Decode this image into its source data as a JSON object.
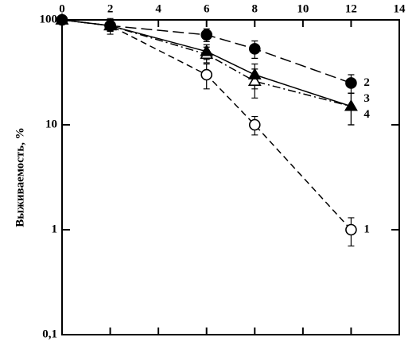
{
  "chart_data": {
    "type": "line",
    "y_label": "Выживаемость, %",
    "x_axis_position": "top",
    "log_y": true,
    "xlim": [
      0,
      14
    ],
    "xticks": [
      0,
      2,
      4,
      6,
      8,
      10,
      12,
      14
    ],
    "ylim": [
      0.1,
      100
    ],
    "yticks": [
      {
        "value": 0.1,
        "label": "0,1"
      },
      1,
      10,
      100
    ],
    "series": [
      {
        "name": "1",
        "color": "#000000",
        "marker": "circle",
        "filled": false,
        "dash": "dashed",
        "x": [
          0,
          2,
          6,
          8,
          12
        ],
        "values": [
          100,
          88,
          30,
          10,
          1
        ],
        "errors": [
          null,
          15,
          8,
          2,
          0.3
        ]
      },
      {
        "name": "2",
        "color": "#000000",
        "marker": "circle",
        "filled": true,
        "dash": "longdash",
        "x": [
          0,
          2,
          6,
          8,
          12
        ],
        "values": [
          100,
          88,
          72,
          53,
          25
        ],
        "errors": [
          null,
          10,
          10,
          10,
          5
        ]
      },
      {
        "name": "3",
        "color": "#000000",
        "marker": "triangle",
        "filled": false,
        "dash": "dashdot",
        "x": [
          0,
          2,
          6,
          8,
          12
        ],
        "values": [
          100,
          88,
          47,
          26,
          15
        ],
        "errors": [
          null,
          10,
          8,
          8,
          5
        ]
      },
      {
        "name": "4",
        "color": "#000000",
        "marker": "triangle",
        "filled": true,
        "dash": "solid",
        "x": [
          0,
          2,
          6,
          8,
          12
        ],
        "values": [
          100,
          88,
          50,
          30,
          15
        ],
        "errors": [
          null,
          10,
          8,
          8,
          5
        ]
      }
    ]
  }
}
